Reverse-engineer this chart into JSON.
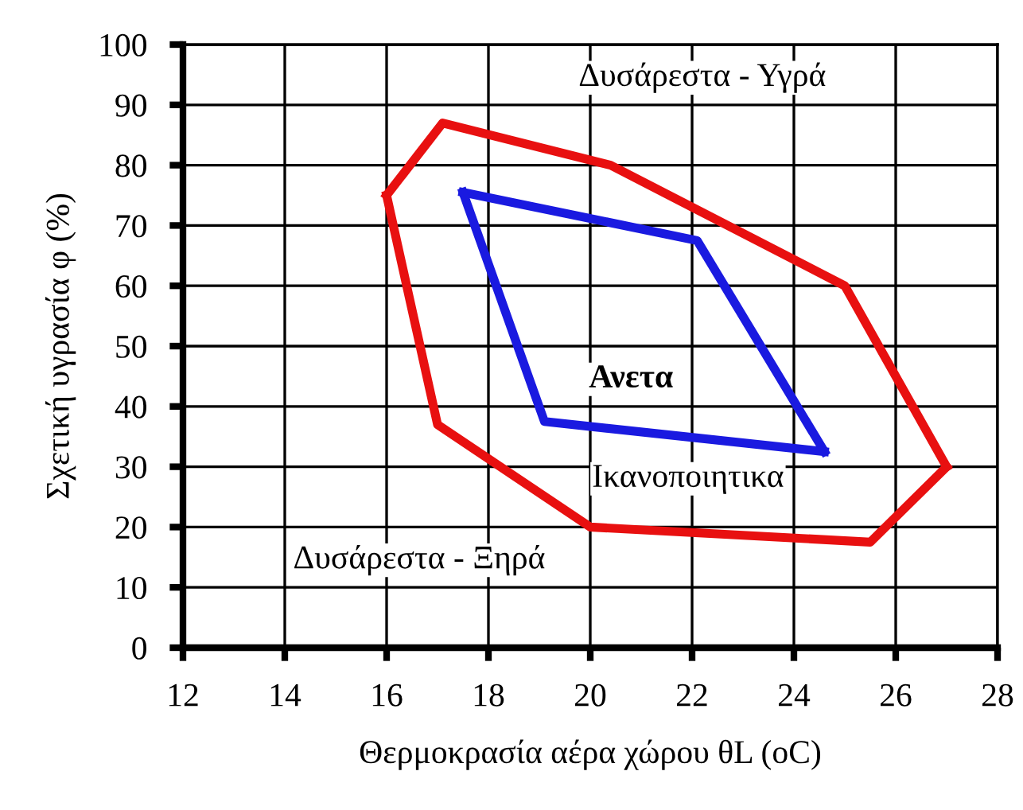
{
  "chart_data": {
    "type": "line",
    "xlabel": "Θερμοκρασία αέρα χώρου θL (oC)",
    "ylabel": "Σχετική υγρασία φ (%)",
    "series": [
      {
        "color": "#e81010",
        "x": [
          16.0,
          17.1,
          20.4,
          25.0,
          27.0
        ],
        "values": [
          75,
          87,
          80,
          60,
          30
        ]
      },
      {
        "color": "#e81010",
        "x": [
          16.0,
          17.0,
          20.0,
          25.5,
          27.0
        ],
        "values": [
          75,
          37,
          20,
          17.5,
          30
        ]
      },
      {
        "color": "#1a1ae0",
        "x": [
          17.5,
          22.1,
          24.6
        ],
        "values": [
          75.5,
          67.5,
          32.5
        ]
      },
      {
        "color": "#1a1ae0",
        "x": [
          17.5,
          19.1,
          24.6
        ],
        "values": [
          75.5,
          37.5,
          32.5
        ]
      }
    ],
    "annotations": [
      "Δυσάρεστα - Υγρά",
      "Ανετα",
      "Ικανοποιητικα",
      "Δυσάρεστα - Ξηρά"
    ],
    "xlim": [
      12,
      28
    ],
    "xticks": [
      12,
      14,
      16,
      18,
      20,
      22,
      24,
      26,
      28
    ],
    "ylim": [
      0,
      100
    ],
    "yticks": [
      0,
      10,
      20,
      30,
      40,
      50,
      60,
      70,
      80,
      90,
      100
    ],
    "grid": true,
    "marker": "none",
    "line_style": "solid"
  }
}
